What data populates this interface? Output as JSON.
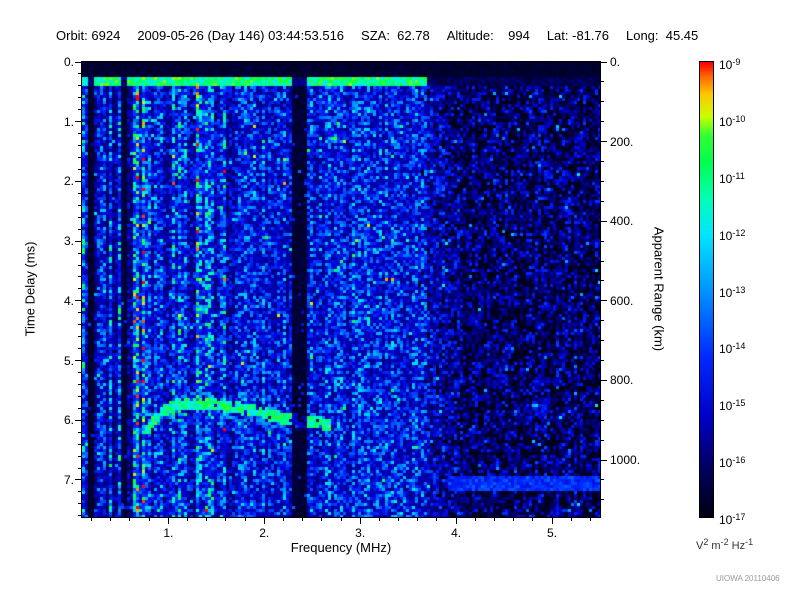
{
  "header": {
    "orbit": "Orbit: 6924",
    "datetime": "2009-05-26 (Day 146) 03:44:53.516",
    "sza": "SZA:  62.78",
    "altitude": "Altitude:    994",
    "lat": "Lat: -81.76",
    "long": "Long:  45.45"
  },
  "watermark": "UIOWA 20110406",
  "chart_data": {
    "type": "heatmap",
    "description": "Radar sounder ionogram: received spectral density vs frequency and time delay. Mostly blue noise background; green ionospheric echo trace near 5.7-6.1 ms between 0.7 and 2.7 MHz; bright green transmit band near 0.3 ms; black band at 0 ms; vertical interference stripes at low frequency; sparse dark region above 3.7 MHz; faint horizontal streak near 7 ms at high frequency.",
    "xlabel": "Frequency (MHz)",
    "ylabel_left": "Time Delay (ms)",
    "ylabel_right": "Apparent Range (km)",
    "x_range_mhz": [
      0.1,
      5.5
    ],
    "y_range_ms": [
      0.0,
      7.62
    ],
    "right_axis_km_per_ms": 150,
    "x_ticks": [
      1,
      2,
      3,
      4,
      5
    ],
    "x_tick_labels": [
      "1.",
      "2.",
      "3.",
      "4.",
      "5."
    ],
    "y_ticks_ms": [
      0,
      1,
      2,
      3,
      4,
      5,
      6,
      7
    ],
    "y_tick_labels": [
      "0.",
      "1.",
      "2.",
      "3.",
      "4.",
      "5.",
      "6.",
      "7."
    ],
    "right_ticks_km": [
      0,
      200,
      400,
      600,
      800,
      1000
    ],
    "right_tick_labels": [
      "0.",
      "200.",
      "400.",
      "600.",
      "800.",
      "1000."
    ],
    "colorbar": {
      "base": "10",
      "tick_exponents": [
        "-9",
        "-10",
        "-11",
        "-12",
        "-13",
        "-14",
        "-15",
        "-16",
        "-17"
      ],
      "scale_min": "1e-17",
      "scale_max": "1e-9",
      "unit_parts": [
        {
          "t": "V",
          "sup": false
        },
        {
          "t": "2",
          "sup": true
        },
        {
          "t": " m",
          "sup": false
        },
        {
          "t": "-2",
          "sup": true
        },
        {
          "t": " Hz",
          "sup": false
        },
        {
          "t": "-1",
          "sup": true
        }
      ]
    },
    "colormap_stops": [
      {
        "v": 0.0,
        "c": "#000014"
      },
      {
        "v": 0.1,
        "c": "#00005a"
      },
      {
        "v": 0.22,
        "c": "#0000c8"
      },
      {
        "v": 0.35,
        "c": "#0028ff"
      },
      {
        "v": 0.5,
        "c": "#0096ff"
      },
      {
        "v": 0.62,
        "c": "#00e6ff"
      },
      {
        "v": 0.7,
        "c": "#00ffb4"
      },
      {
        "v": 0.78,
        "c": "#00ff50"
      },
      {
        "v": 0.84,
        "c": "#32ff32"
      },
      {
        "v": 0.88,
        "c": "#c8ff00"
      },
      {
        "v": 0.93,
        "c": "#ffc800"
      },
      {
        "v": 0.97,
        "c": "#ff6400"
      },
      {
        "v": 1.0,
        "c": "#ff0000"
      }
    ],
    "features": {
      "noise_seed": 20110406,
      "black_band_ms": [
        0,
        0.24
      ],
      "transmit_band_ms": [
        0.26,
        0.42
      ],
      "dark_columns_mhz": [
        [
          0.16,
          0.21
        ],
        [
          0.5,
          0.56
        ],
        [
          2.3,
          2.43
        ]
      ],
      "bright_columns_mhz": [
        [
          0.29,
          0.36
        ],
        [
          1.28,
          1.36
        ]
      ],
      "dark_region_start_mhz": 3.7,
      "echo_trace": [
        [
          0.72,
          6.35
        ],
        [
          0.8,
          6.1
        ],
        [
          0.9,
          5.9
        ],
        [
          1.0,
          5.78
        ],
        [
          1.1,
          5.72
        ],
        [
          1.25,
          5.69
        ],
        [
          1.4,
          5.71
        ],
        [
          1.6,
          5.76
        ],
        [
          1.8,
          5.8
        ],
        [
          2.0,
          5.88
        ],
        [
          2.2,
          5.96
        ],
        [
          2.4,
          6.0
        ],
        [
          2.55,
          6.02
        ],
        [
          2.68,
          6.08
        ]
      ],
      "streak": {
        "t_ms": [
          6.9,
          7.15
        ],
        "f_mhz": [
          3.9,
          5.5
        ]
      }
    }
  }
}
